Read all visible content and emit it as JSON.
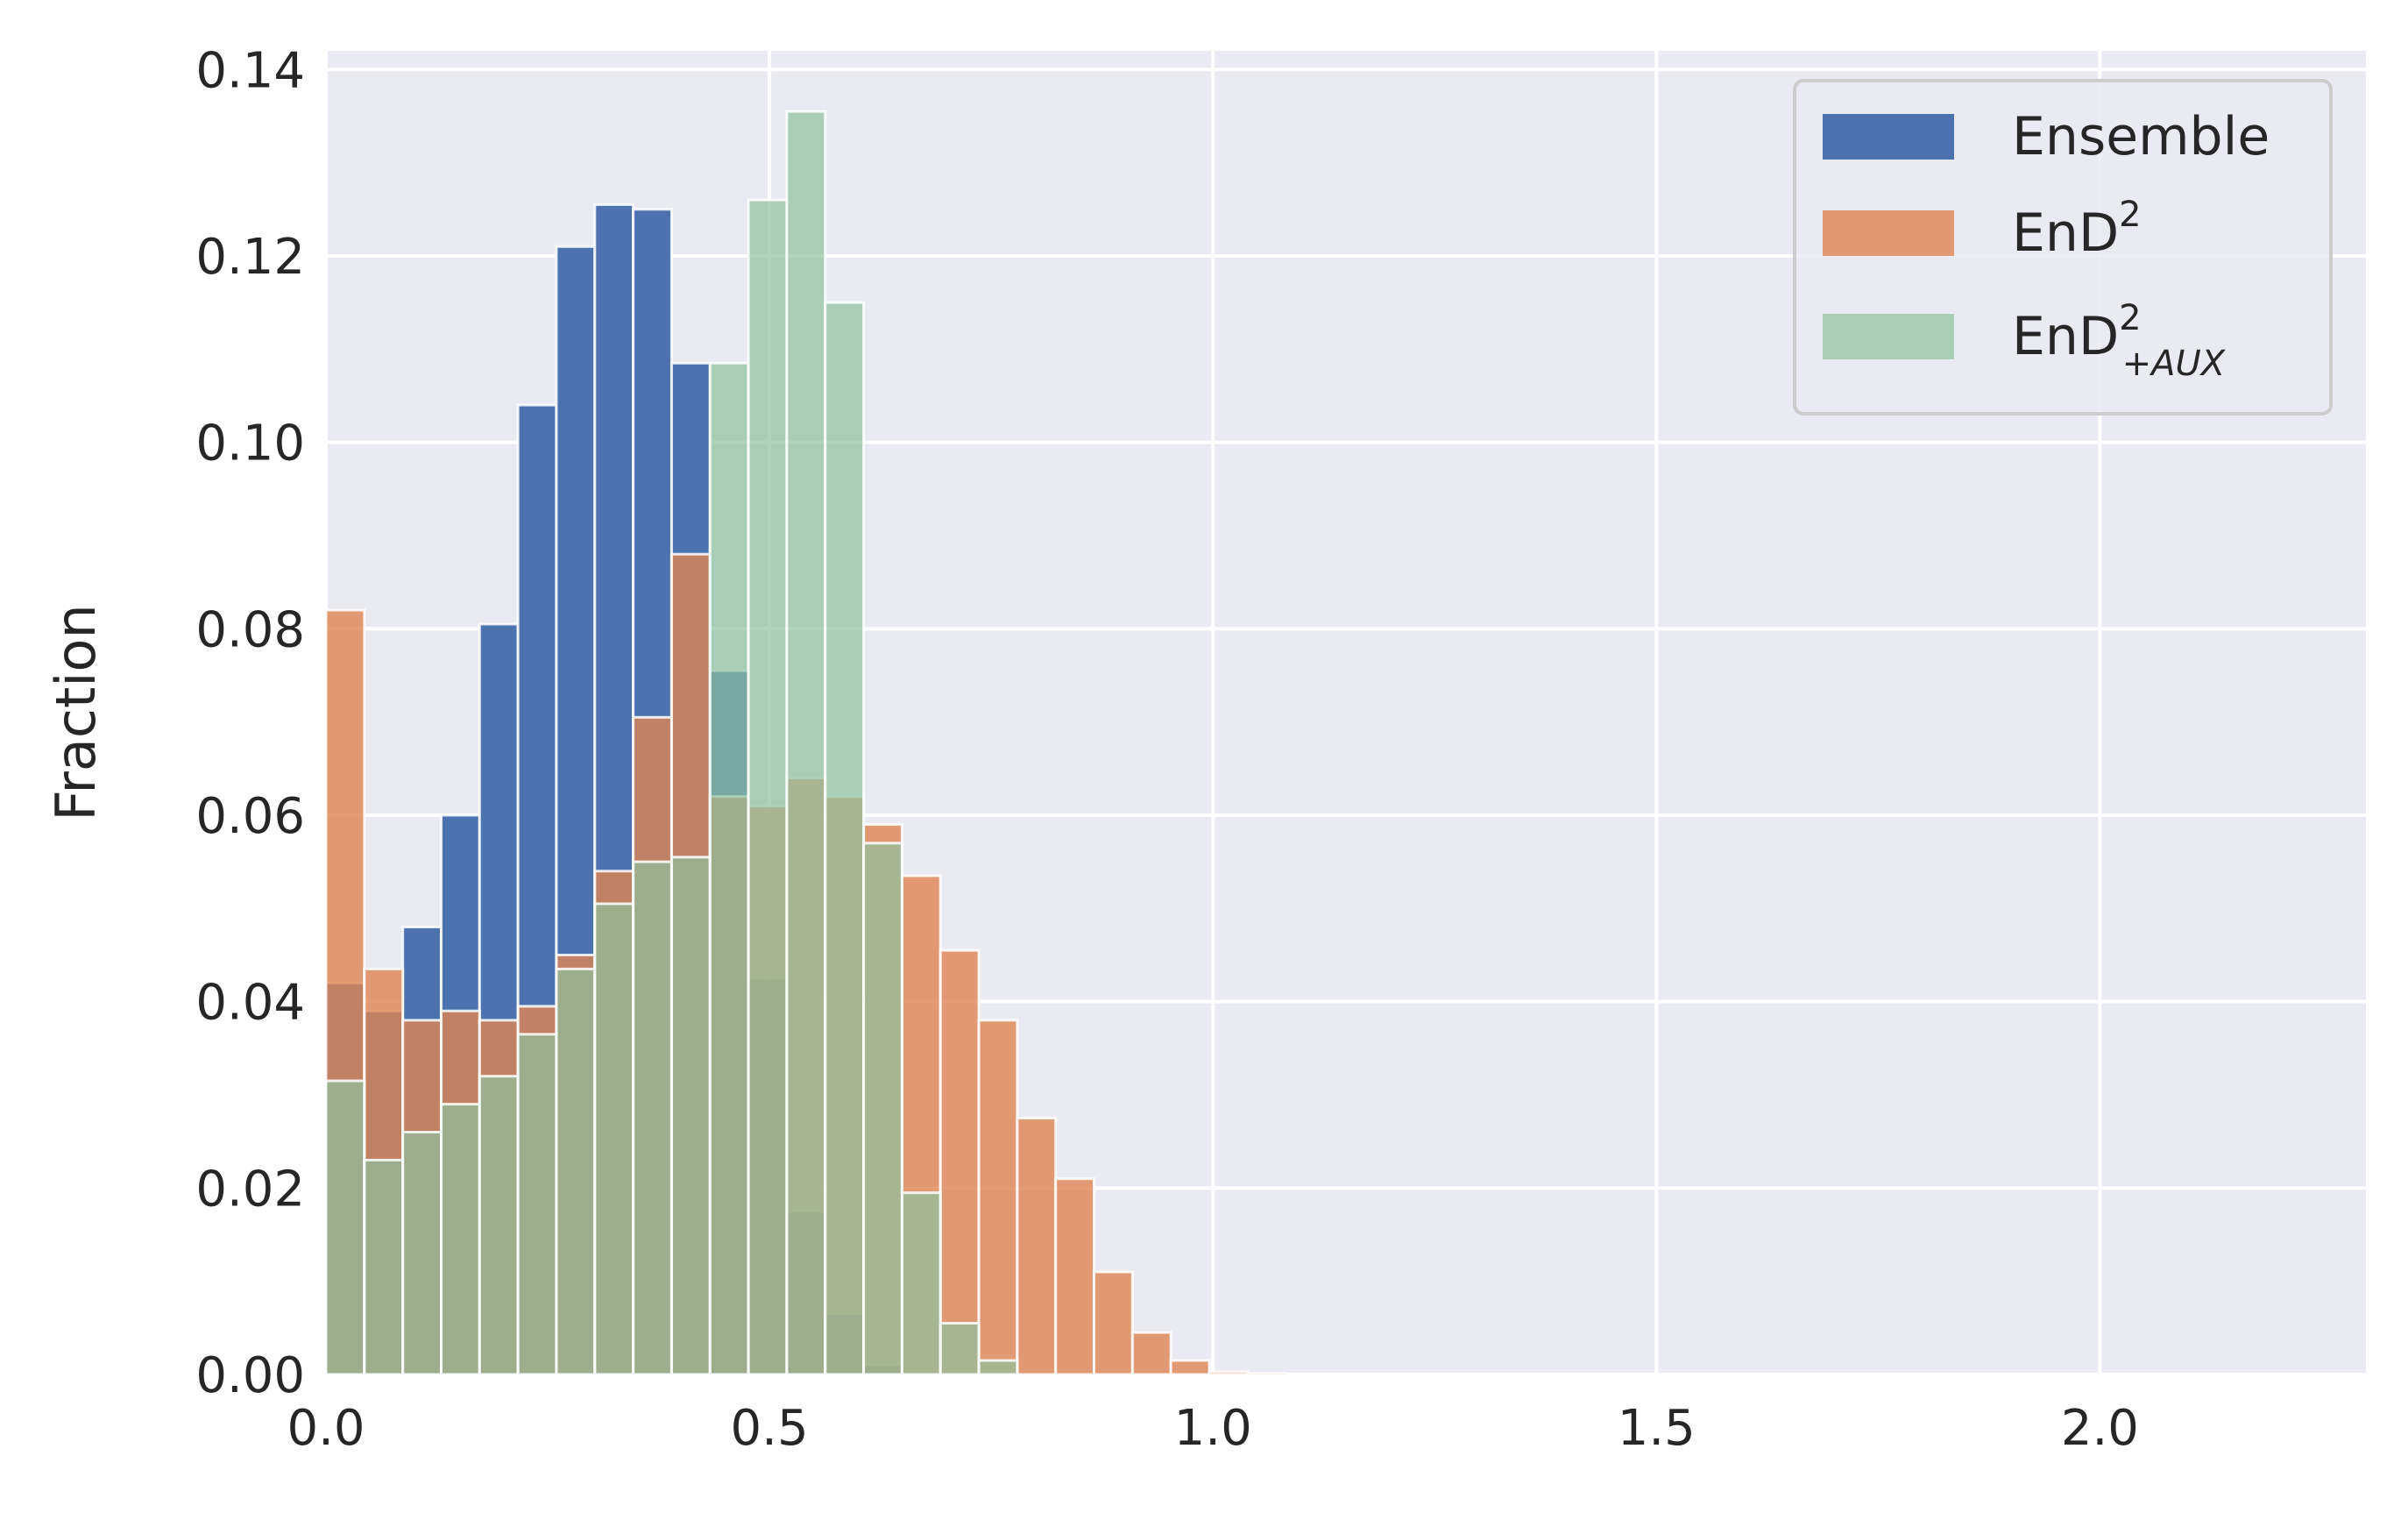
{
  "chart_data": {
    "type": "bar",
    "title": "",
    "xlabel": "",
    "ylabel": "Fraction",
    "xlim": [
      0.0,
      2.3
    ],
    "ylim": [
      0.0,
      0.142
    ],
    "bin_width": 0.0433,
    "x_ticks": [
      "0.0",
      "0.5",
      "1.0",
      "1.5",
      "2.0"
    ],
    "x_tick_values": [
      0.0,
      0.5,
      1.0,
      1.5,
      2.0
    ],
    "y_ticks": [
      "0.00",
      "0.02",
      "0.04",
      "0.06",
      "0.08",
      "0.10",
      "0.12",
      "0.14"
    ],
    "y_tick_values": [
      0.0,
      0.02,
      0.04,
      0.06,
      0.08,
      0.1,
      0.12,
      0.14
    ],
    "grid": true,
    "legend_position": "top-right",
    "bin_starts": [
      0.0,
      0.0433,
      0.0866,
      0.1299,
      0.1732,
      0.2165,
      0.2598,
      0.3031,
      0.3464,
      0.3897,
      0.433,
      0.4763,
      0.5196,
      0.5629,
      0.6062,
      0.6495,
      0.6928,
      0.7361,
      0.7794,
      0.8227,
      0.866,
      0.9093,
      0.9526,
      0.9959,
      1.0392,
      1.0825
    ],
    "series": [
      {
        "name": "Ensemble",
        "color": "#4c72b0",
        "opacity": 1.0,
        "values": [
          0.042,
          0.039,
          0.048,
          0.06,
          0.0805,
          0.104,
          0.121,
          0.1255,
          0.125,
          0.1085,
          0.0755,
          0.0425,
          0.0175,
          0.0065,
          0.001,
          0.0,
          0.0,
          0.0,
          0.0,
          0.0,
          0.0,
          0.0,
          0.0,
          0.0,
          0.0,
          0.0
        ]
      },
      {
        "name": "EnD",
        "color": "#dd8452",
        "opacity": 0.8,
        "values": [
          0.082,
          0.0435,
          0.038,
          0.039,
          0.038,
          0.0395,
          0.045,
          0.054,
          0.0705,
          0.088,
          0.062,
          0.061,
          0.064,
          0.062,
          0.059,
          0.0535,
          0.0455,
          0.038,
          0.0275,
          0.021,
          0.011,
          0.0045,
          0.0015,
          0.0003,
          0.0001,
          0.0
        ]
      },
      {
        "name": "EnD",
        "color": "#8fc1a0",
        "opacity": 0.7,
        "values": [
          0.0315,
          0.023,
          0.026,
          0.029,
          0.032,
          0.0365,
          0.0435,
          0.0505,
          0.055,
          0.0555,
          0.1085,
          0.126,
          0.1355,
          0.115,
          0.057,
          0.0195,
          0.0055,
          0.0015,
          0.0,
          0.0,
          0.0,
          0.0,
          0.0,
          0.0,
          0.0,
          0.0
        ]
      }
    ],
    "legend": [
      {
        "label": "Ensemble",
        "sup": "",
        "sub": "",
        "color": "#4c72b0",
        "opacity": 1.0
      },
      {
        "label": "EnD",
        "sup": "2",
        "sub": "",
        "color": "#dd8452",
        "opacity": 0.8
      },
      {
        "label": "EnD",
        "sup": "2",
        "sub": "+AUX",
        "color": "#8fc1a0",
        "opacity": 0.7
      }
    ],
    "colors": {
      "plot_background": "#eaeaf2",
      "grid": "#ffffff",
      "text": "#262626"
    }
  }
}
